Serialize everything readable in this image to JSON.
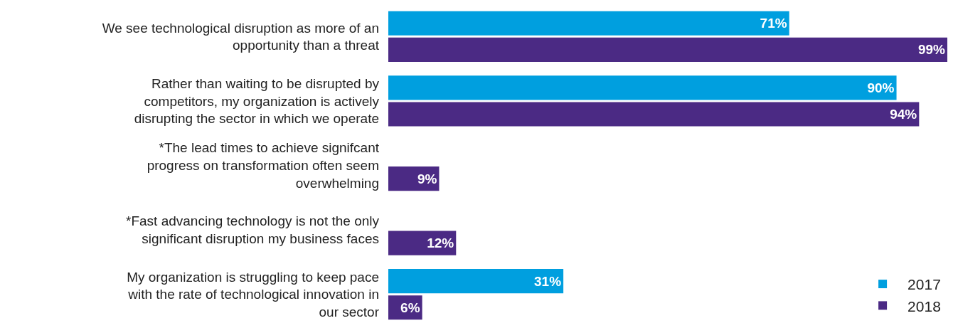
{
  "chart_data": {
    "type": "bar",
    "orientation": "horizontal",
    "categories": [
      "We see technological disruption as more of an opportunity than a threat",
      "Rather than waiting to be disrupted by competitors, my organization is actively disrupting the sector in which we operate",
      "*The lead times to achieve signifcant progress on transformation often seem overwhelming",
      "*Fast advancing technology is not the only significant disruption my business faces",
      "My organization is struggling to keep pace with the rate of technological innovation in our sector"
    ],
    "series": [
      {
        "name": "2017",
        "color": "#009fdf",
        "values": [
          71,
          90,
          null,
          null,
          31
        ],
        "value_labels": [
          "71%",
          "90%",
          null,
          null,
          "31%"
        ]
      },
      {
        "name": "2018",
        "color": "#4b2a84",
        "values": [
          99,
          94,
          9,
          12,
          6
        ],
        "value_labels": [
          "99%",
          "94%",
          "9%",
          "12%",
          "6%"
        ]
      }
    ],
    "xlim": [
      0,
      99.5
    ],
    "legend": "bottom right"
  }
}
